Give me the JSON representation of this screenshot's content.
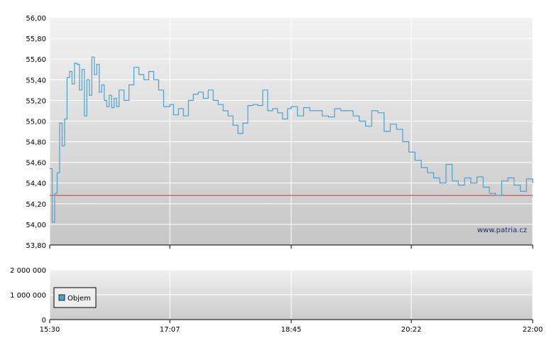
{
  "chart_data": [
    {
      "type": "line",
      "title": "",
      "xlabel": "",
      "ylabel": "",
      "ylim": [
        53.8,
        56.0
      ],
      "y_ticks": [
        "56,00",
        "55,80",
        "55,60",
        "55,40",
        "55,20",
        "55,00",
        "54,80",
        "54,60",
        "54,40",
        "54,20",
        "54,00",
        "53,80"
      ],
      "x_ticks": [
        "15:30",
        "17:07",
        "18:45",
        "20:22",
        "22:00"
      ],
      "grid": true,
      "line_color": "#4aa3cf",
      "reference_line": {
        "value": 54.28,
        "color": "#cc3333"
      },
      "watermark": "www.patria.cz",
      "series": [
        {
          "x": [
            "15:30",
            "15:32",
            "15:34",
            "15:36",
            "15:38",
            "15:40",
            "15:42",
            "15:44",
            "15:46",
            "15:48",
            "15:50",
            "15:52",
            "15:54",
            "15:56",
            "15:58",
            "16:00",
            "16:02",
            "16:04",
            "16:06",
            "16:08",
            "16:10",
            "16:12",
            "16:14",
            "16:16",
            "16:18",
            "16:20",
            "16:22",
            "16:24",
            "16:26",
            "16:30",
            "16:34",
            "16:38",
            "16:42",
            "16:46",
            "16:50",
            "16:54",
            "16:58",
            "17:02",
            "17:07",
            "17:10",
            "17:14",
            "17:18",
            "17:22",
            "17:26",
            "17:30",
            "17:34",
            "17:38",
            "17:42",
            "17:46",
            "17:50",
            "17:54",
            "17:58",
            "18:02",
            "18:06",
            "18:10",
            "18:14",
            "18:18",
            "18:22",
            "18:26",
            "18:30",
            "18:34",
            "18:38",
            "18:42",
            "18:45",
            "18:50",
            "18:55",
            "19:00",
            "19:05",
            "19:10",
            "19:15",
            "19:20",
            "19:25",
            "19:30",
            "19:35",
            "19:40",
            "19:45",
            "19:50",
            "19:55",
            "20:00",
            "20:05",
            "20:10",
            "20:15",
            "20:20",
            "20:25",
            "20:30",
            "20:35",
            "20:40",
            "20:45",
            "20:50",
            "20:55",
            "21:00",
            "21:05",
            "21:10",
            "21:15",
            "21:20",
            "21:25",
            "21:30",
            "21:35",
            "21:40",
            "21:45",
            "21:50",
            "21:55",
            "22:00"
          ],
          "values": [
            54.54,
            54.02,
            54.3,
            54.5,
            54.98,
            54.76,
            55.02,
            55.42,
            55.48,
            55.36,
            55.56,
            55.55,
            55.3,
            55.5,
            55.05,
            55.4,
            55.25,
            55.62,
            55.45,
            55.55,
            55.28,
            55.35,
            55.2,
            55.14,
            55.25,
            55.13,
            55.22,
            55.14,
            55.3,
            55.2,
            55.35,
            55.52,
            55.45,
            55.4,
            55.48,
            55.4,
            55.3,
            55.14,
            55.16,
            55.06,
            55.12,
            55.05,
            55.2,
            55.26,
            55.28,
            55.22,
            55.3,
            55.2,
            55.16,
            55.1,
            55.05,
            54.96,
            54.88,
            54.98,
            55.15,
            55.16,
            55.15,
            55.3,
            55.1,
            55.12,
            55.08,
            55.02,
            55.12,
            55.14,
            55.05,
            55.13,
            55.1,
            55.1,
            55.05,
            55.04,
            55.12,
            55.1,
            55.1,
            55.05,
            55.0,
            54.95,
            55.1,
            55.08,
            54.9,
            54.97,
            54.92,
            54.8,
            54.7,
            54.62,
            54.55,
            54.5,
            54.45,
            54.4,
            54.58,
            54.42,
            54.38,
            54.45,
            54.4,
            54.46,
            54.36,
            54.3,
            54.28,
            54.42,
            54.45,
            54.38,
            54.32,
            54.44,
            54.4
          ]
        }
      ]
    },
    {
      "type": "bar",
      "title": "",
      "ylim": [
        0,
        2000000
      ],
      "y_ticks": [
        "2 000 000",
        "1 000 000",
        "0"
      ],
      "x_ticks": [
        "15:30",
        "17:07",
        "18:45",
        "20:22",
        "22:00"
      ],
      "grid": true,
      "series": [
        {
          "name": "Objem",
          "color": "#4aa3cf",
          "values": []
        }
      ],
      "legend": {
        "label": "Objem",
        "placement": "top-left"
      }
    }
  ]
}
